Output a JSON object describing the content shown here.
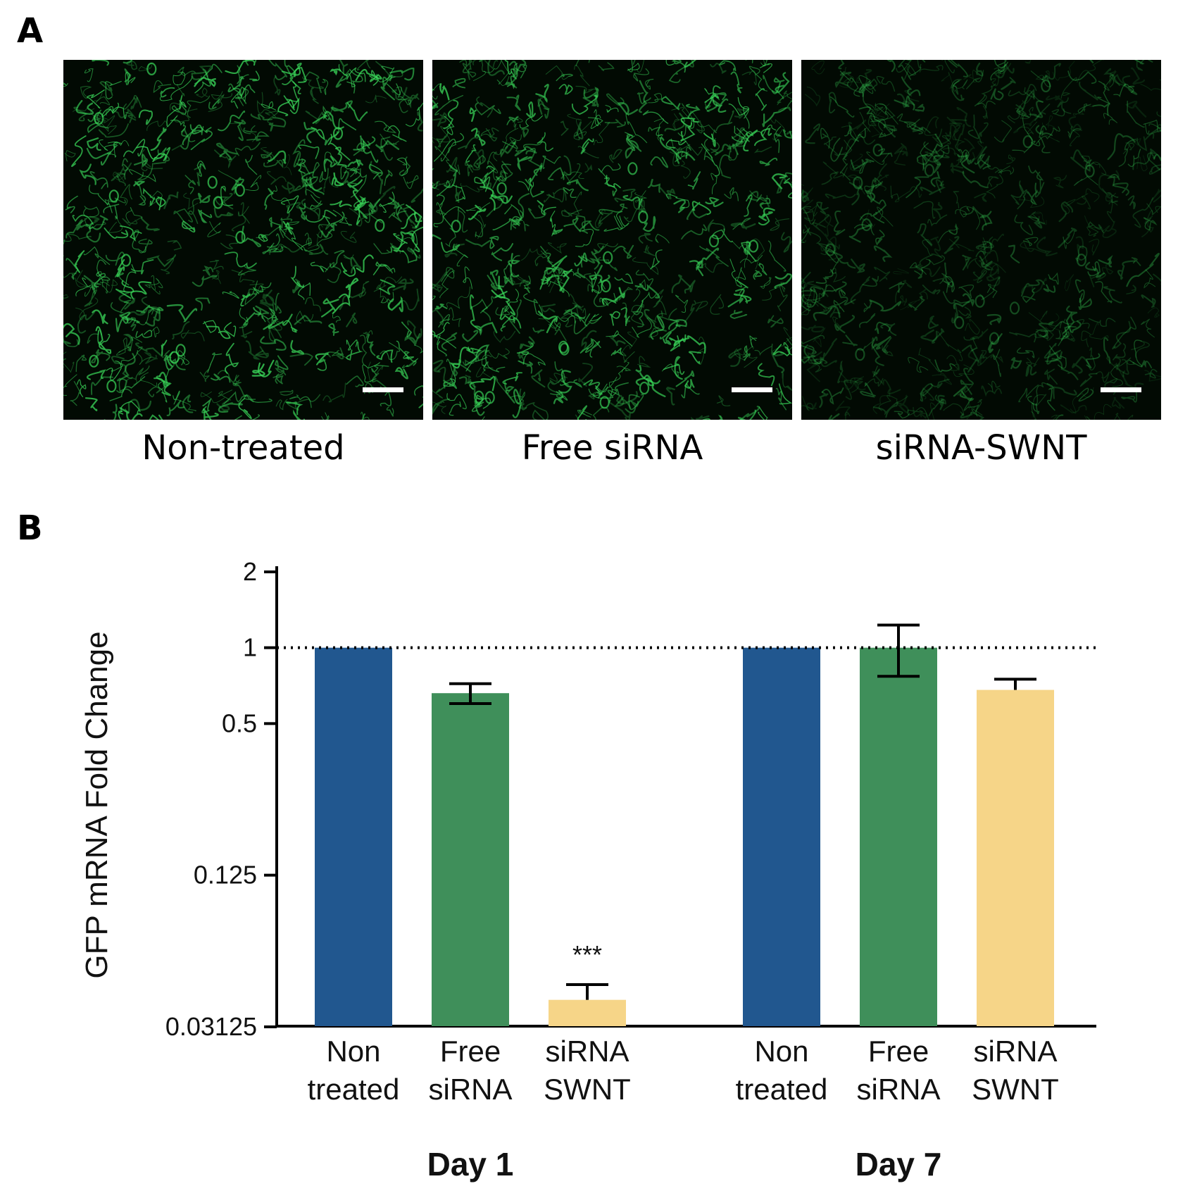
{
  "panel_a": {
    "letter": "A",
    "images": [
      {
        "label": "Non-treated",
        "brightness": 1.0
      },
      {
        "label": "Free siRNA",
        "brightness": 0.95
      },
      {
        "label": "siRNA-SWNT",
        "brightness": 0.45
      }
    ]
  },
  "panel_b": {
    "letter": "B"
  },
  "colors": {
    "blue": "#21578f",
    "green": "#3f8f5a",
    "yellow": "#f6d588",
    "cell_green": "#3ad85a"
  },
  "chart_data": {
    "type": "bar",
    "ylabel": "GFP mRNA Fold Change",
    "y_scale": "log2",
    "ylim": [
      0.03125,
      2
    ],
    "yticks": [
      2,
      1,
      0.5,
      0.125,
      0.03125
    ],
    "ytick_labels": [
      "2",
      "1",
      "0.5",
      "0.125",
      "0.03125"
    ],
    "reference_line": 1,
    "groups": [
      {
        "name": "Day 1",
        "bars": [
          {
            "label": [
              "Non",
              "treated"
            ],
            "value": 1.0,
            "err": 0,
            "color": "blue"
          },
          {
            "label": [
              "Free",
              "siRNA"
            ],
            "value": 0.66,
            "err": 0.06,
            "color": "green"
          },
          {
            "label": [
              "siRNA",
              "SWNT"
            ],
            "value": 0.04,
            "err": 0.006,
            "color": "yellow",
            "annotation": "***"
          }
        ]
      },
      {
        "name": "Day 7",
        "bars": [
          {
            "label": [
              "Non",
              "treated"
            ],
            "value": 1.0,
            "err": 0,
            "color": "blue"
          },
          {
            "label": [
              "Free",
              "siRNA"
            ],
            "value": 1.0,
            "err": 0.23,
            "color": "green"
          },
          {
            "label": [
              "siRNA",
              "SWNT"
            ],
            "value": 0.68,
            "err": 0.07,
            "color": "yellow"
          }
        ]
      }
    ]
  }
}
